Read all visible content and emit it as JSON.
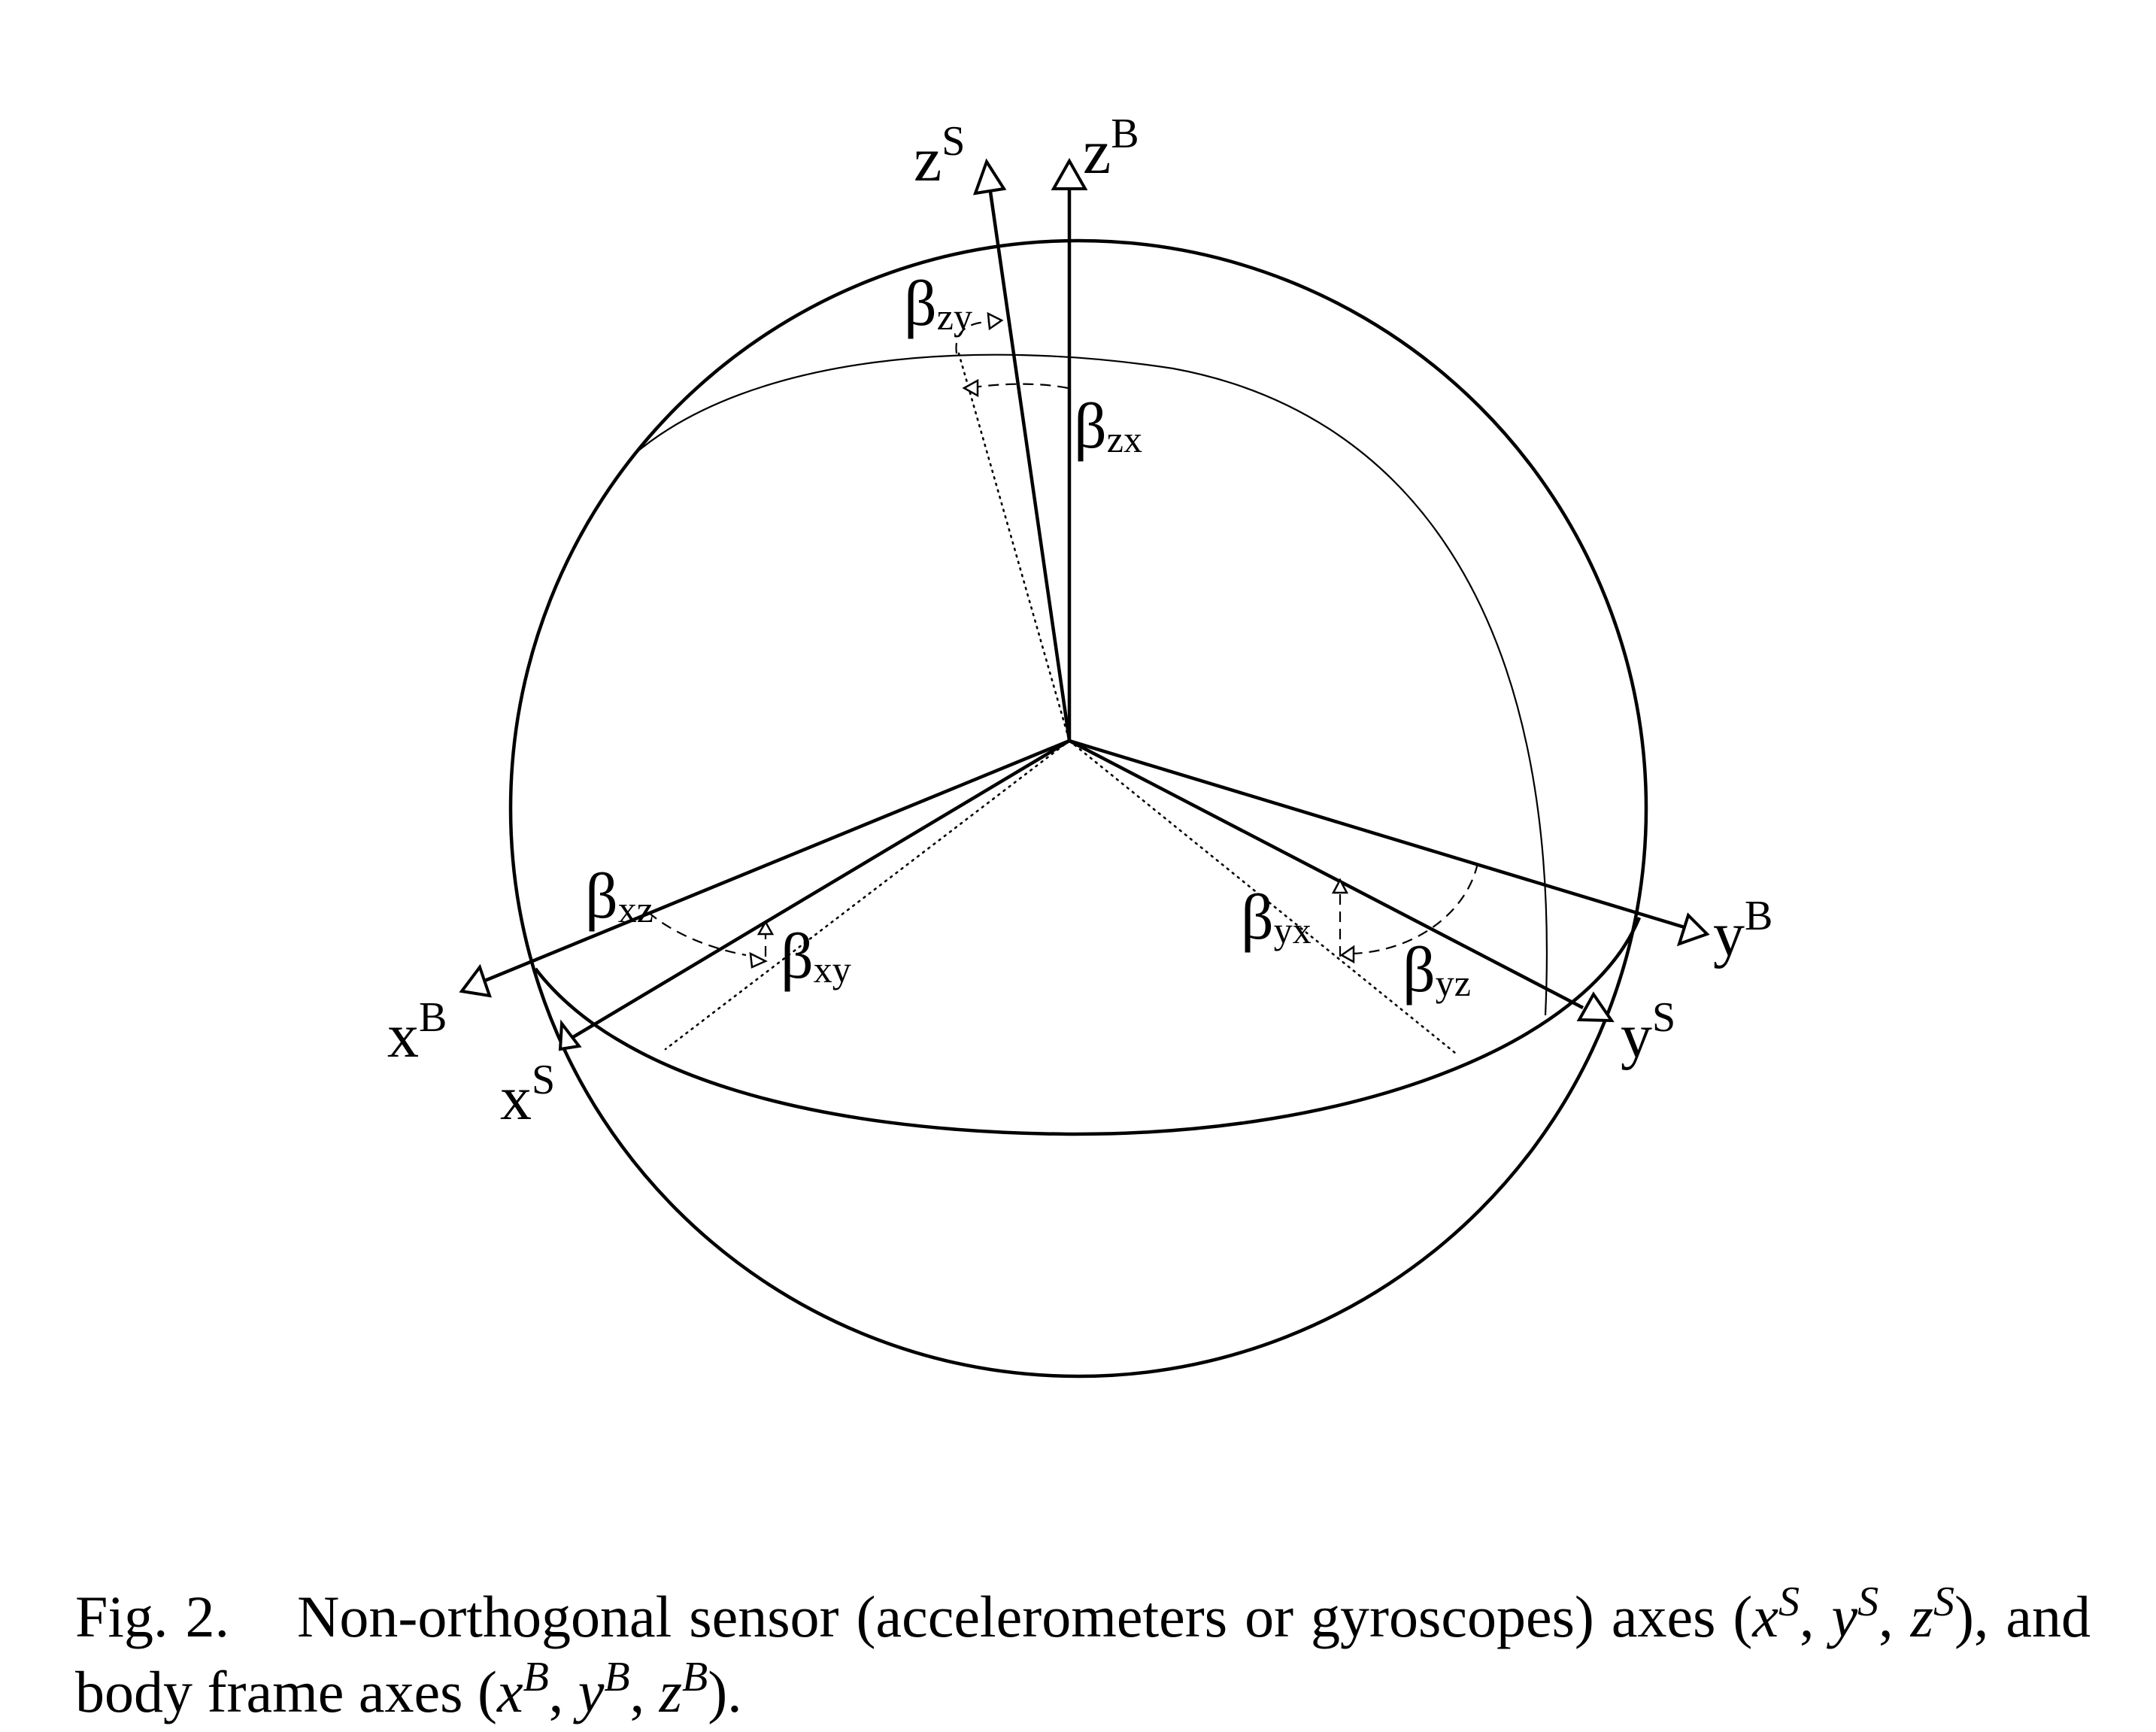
{
  "figure": {
    "axes": {
      "zS": {
        "main": "z",
        "sup": "S"
      },
      "zB": {
        "main": "z",
        "sup": "B"
      },
      "xB": {
        "main": "x",
        "sup": "B"
      },
      "xS": {
        "main": "x",
        "sup": "S"
      },
      "yB": {
        "main": "y",
        "sup": "B"
      },
      "yS": {
        "main": "y",
        "sup": "S"
      }
    },
    "angles": {
      "zy": {
        "symbol": "β",
        "sub": "zy"
      },
      "zx": {
        "symbol": "β",
        "sub": "zx"
      },
      "xz": {
        "symbol": "β",
        "sub": "xz"
      },
      "xy": {
        "symbol": "β",
        "sub": "xy"
      },
      "yx": {
        "symbol": "β",
        "sub": "yx"
      },
      "yz": {
        "symbol": "β",
        "sub": "yz"
      }
    }
  },
  "caption": {
    "label": "Fig. 2.",
    "text_1": "Non-orthogonal sensor (accelerometers or gyroscopes) axes (",
    "xS": {
      "main": "x",
      "sup": "S"
    },
    "sep_1": ", ",
    "yS": {
      "main": "y",
      "sup": "S"
    },
    "sep_2": ", ",
    "zS": {
      "main": "z",
      "sup": "S"
    },
    "text_2": "), and body frame axes (",
    "xB": {
      "main": "x",
      "sup": "B"
    },
    "sep_3": ", ",
    "yB": {
      "main": "y",
      "sup": "B"
    },
    "sep_4": ", ",
    "zB": {
      "main": "z",
      "sup": "B"
    },
    "text_3": ")."
  }
}
